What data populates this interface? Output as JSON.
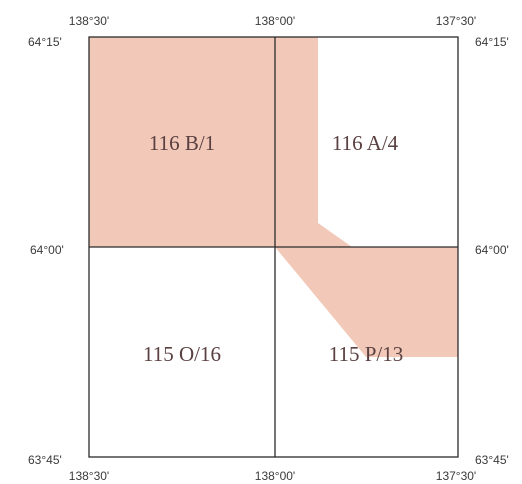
{
  "map": {
    "longitudes": {
      "west": "138°30'",
      "center": "138°00'",
      "east": "137°30'"
    },
    "latitudes": {
      "north": "64°15'",
      "middle": "64°00'",
      "south": "63°45'"
    },
    "sheets": {
      "nw": "116 B/1",
      "ne": "116 A/4",
      "sw": "115 O/16",
      "se": "115 P/13"
    },
    "colors": {
      "shaded": "#f2c9b9",
      "grid": "#2b2b2b",
      "background": "#ffffff"
    }
  }
}
